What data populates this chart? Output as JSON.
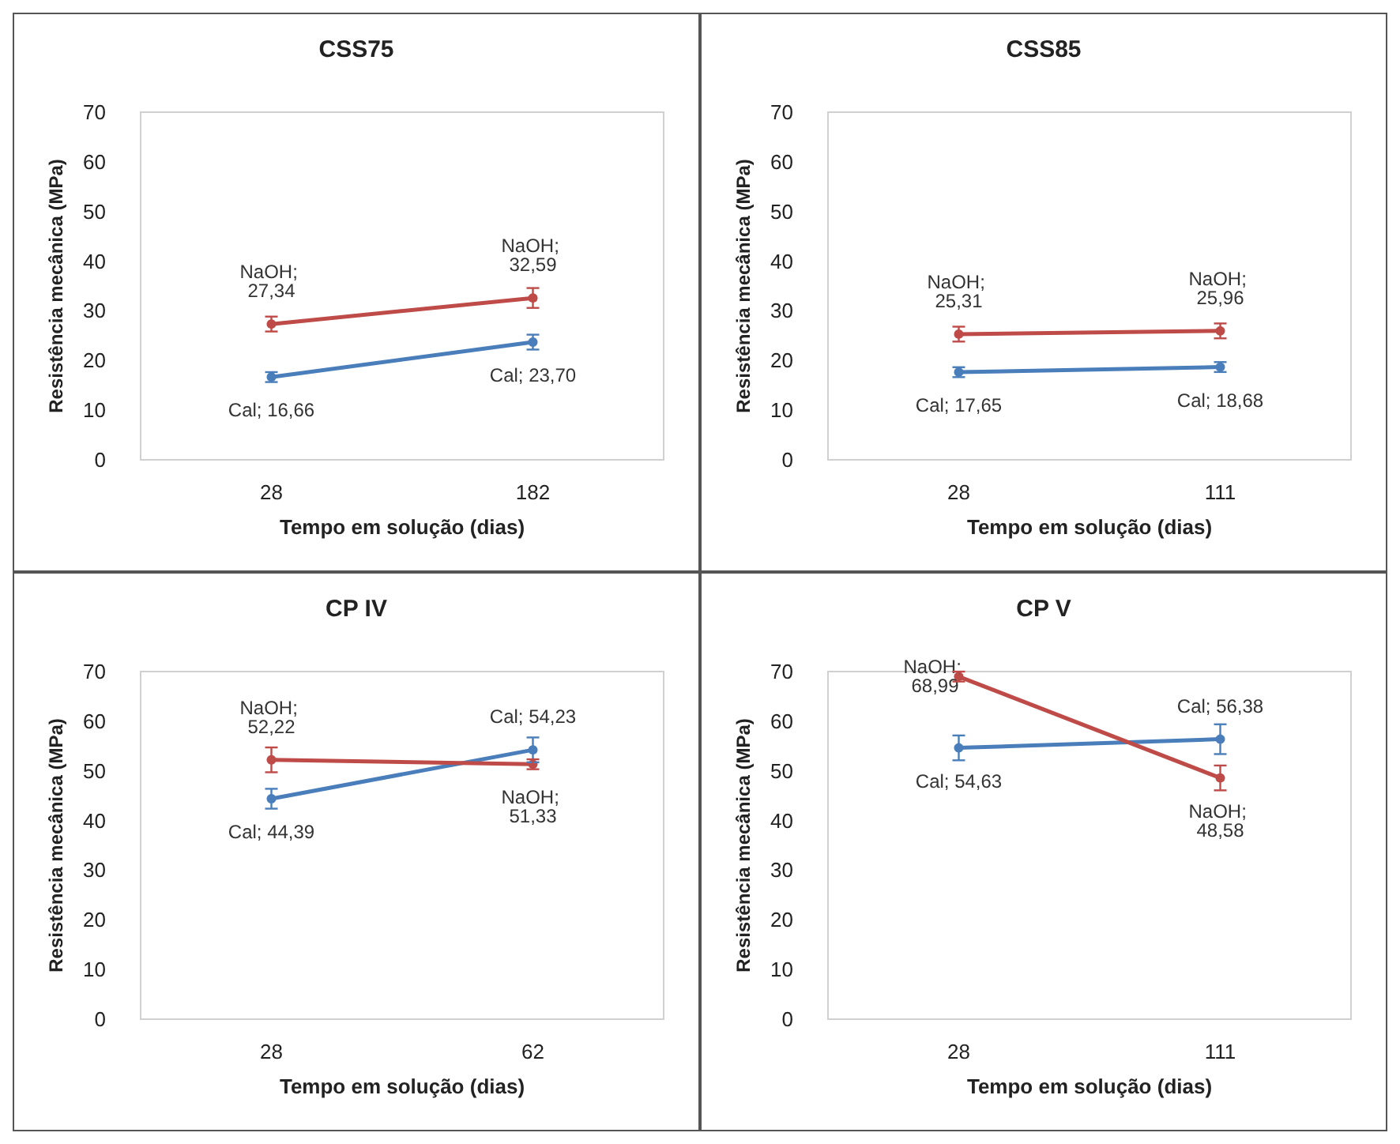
{
  "chart_data": [
    {
      "type": "line",
      "title": "CSS75",
      "xlabel": "Tempo em solução (dias)",
      "ylabel": "Resistência mecânica (MPa)",
      "categories": [
        "28",
        "182"
      ],
      "ylim": [
        0,
        70
      ],
      "yticks": [
        0,
        10,
        20,
        30,
        40,
        50,
        60,
        70
      ],
      "grid": false,
      "marker": "circle",
      "series": [
        {
          "color": "#4a7ebb",
          "values": [
            16.66,
            23.7
          ],
          "value_labels": [
            "Cal; 16,66",
            "Cal; 23,70"
          ],
          "errors": [
            1,
            1.5
          ]
        },
        {
          "color": "#be4b48",
          "values": [
            27.34,
            32.59
          ],
          "value_labels": [
            "NaOH; 27,34",
            "NaOH; 32,59"
          ],
          "errors": [
            1.5,
            2
          ]
        }
      ]
    },
    {
      "type": "line",
      "title": "CSS85",
      "xlabel": "Tempo em solução (dias)",
      "ylabel": "Resistência mecânica (MPa)",
      "categories": [
        "28",
        "111"
      ],
      "ylim": [
        0,
        70
      ],
      "yticks": [
        0,
        10,
        20,
        30,
        40,
        50,
        60,
        70
      ],
      "grid": false,
      "marker": "circle",
      "series": [
        {
          "color": "#4a7ebb",
          "values": [
            17.65,
            18.68
          ],
          "value_labels": [
            "Cal; 17,65",
            "Cal; 18,68"
          ],
          "errors": [
            1,
            1
          ]
        },
        {
          "color": "#be4b48",
          "values": [
            25.31,
            25.96
          ],
          "value_labels": [
            "NaOH; 25,31",
            "NaOH; 25,96"
          ],
          "errors": [
            1.5,
            1.5
          ]
        }
      ]
    },
    {
      "type": "line",
      "title": "CP IV",
      "xlabel": "Tempo em solução (dias)",
      "ylabel": "Resistência mecânica (MPa)",
      "categories": [
        "28",
        "62"
      ],
      "ylim": [
        0,
        70
      ],
      "yticks": [
        0,
        10,
        20,
        30,
        40,
        50,
        60,
        70
      ],
      "grid": false,
      "marker": "circle",
      "series": [
        {
          "color": "#4a7ebb",
          "values": [
            44.39,
            54.23
          ],
          "value_labels": [
            "Cal; 44,39",
            "Cal; 54,23"
          ],
          "errors": [
            2,
            2.5
          ]
        },
        {
          "color": "#be4b48",
          "values": [
            52.22,
            51.33
          ],
          "value_labels": [
            "NaOH; 52,22",
            "NaOH; 51,33"
          ],
          "errors": [
            2.5,
            1
          ]
        }
      ]
    },
    {
      "type": "line",
      "title": "CP V",
      "xlabel": "Tempo em solução (dias)",
      "ylabel": "Resistência mecânica (MPa)",
      "categories": [
        "28",
        "111"
      ],
      "ylim": [
        0,
        70
      ],
      "yticks": [
        0,
        10,
        20,
        30,
        40,
        50,
        60,
        70
      ],
      "grid": false,
      "marker": "circle",
      "series": [
        {
          "color": "#4a7ebb",
          "values": [
            54.63,
            56.38
          ],
          "value_labels": [
            "Cal; 54,63",
            "Cal; 56,38"
          ],
          "errors": [
            2.5,
            3
          ]
        },
        {
          "color": "#be4b48",
          "values": [
            68.99,
            48.58
          ],
          "value_labels": [
            "NaOH; 68,99",
            "NaOH; 48,58"
          ],
          "errors": [
            1,
            2.5
          ]
        }
      ]
    }
  ]
}
